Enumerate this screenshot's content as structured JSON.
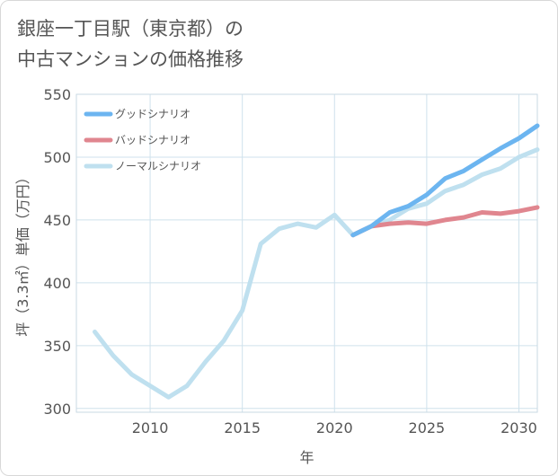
{
  "title_lines": [
    "銀座一丁目駅（東京都）の",
    "中古マンションの価格推移"
  ],
  "chart_data": {
    "type": "line",
    "title": "銀座一丁目駅（東京都）の中古マンションの価格推移",
    "xlabel": "年",
    "ylabel": "坪（3.3㎡）単価（万円）",
    "xlim": [
      2006,
      2031
    ],
    "ylim": [
      297,
      550
    ],
    "x_ticks": [
      2010,
      2015,
      2020,
      2025,
      2030
    ],
    "y_ticks": [
      300,
      350,
      400,
      450,
      500,
      550
    ],
    "grid": true,
    "legend_position": "top-left",
    "series": [
      {
        "name": "グッドシナリオ",
        "color": "#6cb5f0",
        "x": [
          2021,
          2022,
          2023,
          2024,
          2025,
          2026,
          2027,
          2028,
          2029,
          2030,
          2031
        ],
        "y": [
          438,
          445,
          456,
          461,
          470,
          483,
          489,
          498,
          507,
          515,
          525
        ]
      },
      {
        "name": "バッドシナリオ",
        "color": "#e0868f",
        "x": [
          2021,
          2022,
          2023,
          2024,
          2025,
          2026,
          2027,
          2028,
          2029,
          2030,
          2031
        ],
        "y": [
          438,
          445,
          447,
          448,
          447,
          450,
          452,
          456,
          455,
          457,
          460
        ]
      },
      {
        "name": "ノーマルシナリオ",
        "color": "#bfe0ef",
        "x": [
          2007,
          2008,
          2009,
          2010,
          2011,
          2012,
          2013,
          2014,
          2015,
          2016,
          2017,
          2018,
          2019,
          2020,
          2021,
          2022,
          2023,
          2024,
          2025,
          2026,
          2027,
          2028,
          2029,
          2030,
          2031
        ],
        "y": [
          361,
          342,
          327,
          318,
          309,
          318,
          337,
          354,
          378,
          431,
          443,
          447,
          444,
          454,
          438,
          445,
          450,
          459,
          463,
          473,
          478,
          486,
          491,
          500,
          506
        ]
      }
    ]
  }
}
